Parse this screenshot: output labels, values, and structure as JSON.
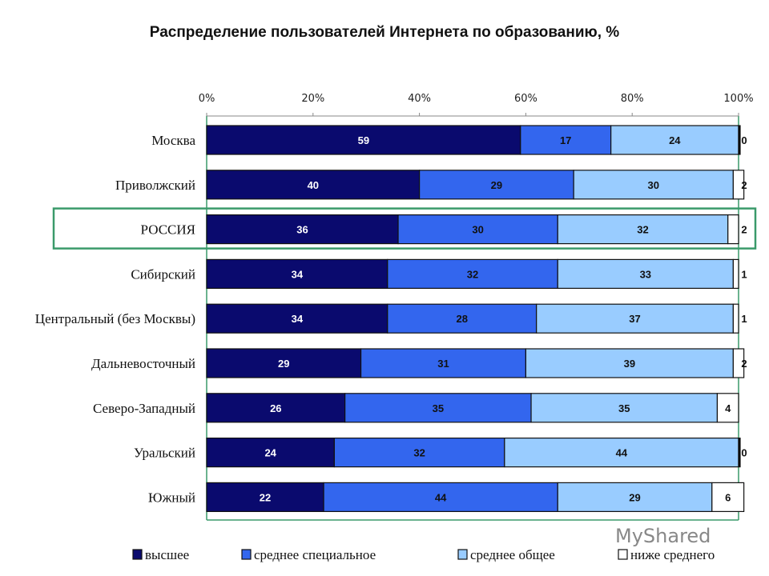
{
  "chart_data": {
    "type": "bar",
    "orientation": "horizontal",
    "stacked": "percent",
    "title": "Распределение пользователей Интернета по образованию, %",
    "categories": [
      "Москва",
      "Приволжский",
      "РОССИЯ",
      "Сибирский",
      "Центральный (без Москвы)",
      "Дальневосточный",
      "Северо-Западный",
      "Уральский",
      "Южный"
    ],
    "highlighted_category": "РОССИЯ",
    "series": [
      {
        "name": "высшее",
        "color": "#0a0a6e",
        "values": [
          59,
          40,
          36,
          34,
          34,
          29,
          26,
          24,
          22
        ]
      },
      {
        "name": "среднее специальное",
        "color": "#3366ee",
        "values": [
          17,
          29,
          30,
          32,
          28,
          31,
          35,
          32,
          44
        ]
      },
      {
        "name": "среднее общее",
        "color": "#99ccff",
        "values": [
          24,
          30,
          32,
          33,
          37,
          39,
          35,
          44,
          29
        ]
      },
      {
        "name": "ниже среднего",
        "color": "#ffffff",
        "values": [
          0,
          2,
          2,
          1,
          1,
          2,
          4,
          0,
          6
        ]
      }
    ],
    "xticks": [
      "0%",
      "20%",
      "40%",
      "60%",
      "80%",
      "100%"
    ],
    "xlim": [
      0,
      100
    ],
    "xaxis_position": "top",
    "legend_position": "bottom",
    "grid": false
  },
  "watermark": "MyShared"
}
